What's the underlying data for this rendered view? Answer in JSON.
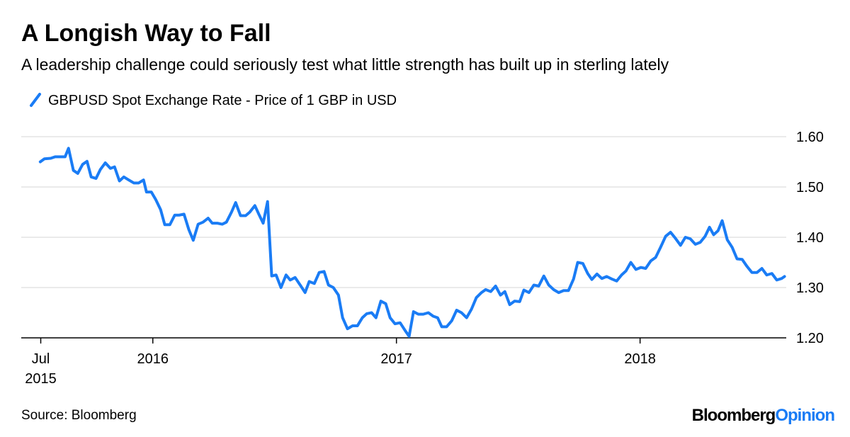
{
  "chart_data": {
    "type": "line",
    "title": "A Longish Way to Fall",
    "subtitle": "A leadership challenge could seriously test what little strength has built up in sterling lately",
    "source": "Source: Bloomberg",
    "brand": [
      "Bloomberg",
      "Opinion"
    ],
    "legend": "top-left",
    "grid": true,
    "xlim": [
      2015.46,
      2018.6
    ],
    "xticks": [
      {
        "value": 2015.54,
        "label": "Jul 2015"
      },
      2016,
      2017,
      2018
    ],
    "ylim": [
      1.2,
      1.6
    ],
    "yticks": [
      {
        "value": 1.2,
        "label": "1.20"
      },
      {
        "value": 1.3,
        "label": "1.30"
      },
      {
        "value": 1.4,
        "label": "1.40"
      },
      {
        "value": 1.5,
        "label": "1.50"
      },
      {
        "value": 1.6,
        "label": "1.60"
      }
    ],
    "x": [
      2015.538,
      2015.555,
      2015.581,
      2015.599,
      2015.64,
      2015.654,
      2015.674,
      2015.692,
      2015.712,
      2015.73,
      2015.747,
      2015.767,
      2015.785,
      2015.805,
      2015.826,
      2015.843,
      2015.863,
      2015.881,
      2015.901,
      2015.922,
      2015.942,
      2015.962,
      2015.974,
      2015.994,
      2016.012,
      2016.032,
      2016.049,
      2016.07,
      2016.09,
      2016.108,
      2016.128,
      2016.148,
      2016.166,
      2016.186,
      2016.206,
      2016.227,
      2016.244,
      2016.265,
      2016.285,
      2016.302,
      2016.323,
      2016.34,
      2016.36,
      2016.381,
      2016.398,
      2016.419,
      2016.436,
      2016.453,
      2016.471,
      2016.488,
      2016.506,
      2016.526,
      2016.547,
      2016.564,
      2016.584,
      2016.605,
      2016.625,
      2016.642,
      2016.663,
      2016.683,
      2016.703,
      2016.721,
      2016.741,
      2016.762,
      2016.779,
      2016.799,
      2016.82,
      2016.84,
      2016.86,
      2016.878,
      2016.898,
      2016.916,
      2016.936,
      2016.956,
      2016.974,
      2016.994,
      2017.015,
      2017.035,
      2017.052,
      2017.07,
      2017.09,
      2017.11,
      2017.131,
      2017.151,
      2017.169,
      2017.186,
      2017.206,
      2017.227,
      2017.247,
      2017.267,
      2017.288,
      2017.308,
      2017.328,
      2017.349,
      2017.366,
      2017.387,
      2017.407,
      2017.427,
      2017.445,
      2017.465,
      2017.485,
      2017.506,
      2017.523,
      2017.544,
      2017.564,
      2017.584,
      2017.605,
      2017.625,
      2017.645,
      2017.666,
      2017.686,
      2017.706,
      2017.727,
      2017.744,
      2017.765,
      2017.785,
      2017.802,
      2017.823,
      2017.843,
      2017.863,
      2017.884,
      2017.904,
      2017.924,
      2017.942,
      2017.962,
      2017.983,
      2018.003,
      2018.023,
      2018.044,
      2018.064,
      2018.084,
      2018.105,
      2018.125,
      2018.145,
      2018.166,
      2018.186,
      2018.206,
      2018.227,
      2018.247,
      2018.267,
      2018.285,
      2018.302,
      2018.32,
      2018.337,
      2018.358,
      2018.378,
      2018.398,
      2018.419,
      2018.439,
      2018.459,
      2018.48,
      2018.5,
      2018.52,
      2018.541,
      2018.561,
      2018.581,
      2018.593
    ],
    "series": [
      {
        "name": "GBPUSD Spot Exchange Rate - Price of 1 GBP in USD",
        "color": "#1a7cf5",
        "values": [
          1.55,
          1.556,
          1.557,
          1.56,
          1.56,
          1.577,
          1.533,
          1.527,
          1.545,
          1.551,
          1.52,
          1.517,
          1.535,
          1.548,
          1.537,
          1.54,
          1.512,
          1.52,
          1.514,
          1.508,
          1.508,
          1.514,
          1.49,
          1.49,
          1.475,
          1.455,
          1.425,
          1.425,
          1.444,
          1.444,
          1.446,
          1.415,
          1.394,
          1.426,
          1.43,
          1.438,
          1.428,
          1.428,
          1.426,
          1.43,
          1.45,
          1.469,
          1.443,
          1.443,
          1.45,
          1.463,
          1.445,
          1.428,
          1.471,
          1.323,
          1.325,
          1.3,
          1.325,
          1.315,
          1.32,
          1.305,
          1.29,
          1.312,
          1.308,
          1.33,
          1.332,
          1.305,
          1.3,
          1.285,
          1.24,
          1.218,
          1.224,
          1.224,
          1.24,
          1.248,
          1.25,
          1.24,
          1.273,
          1.268,
          1.24,
          1.228,
          1.23,
          1.215,
          1.203,
          1.252,
          1.247,
          1.247,
          1.25,
          1.243,
          1.24,
          1.222,
          1.222,
          1.234,
          1.255,
          1.25,
          1.24,
          1.257,
          1.28,
          1.29,
          1.296,
          1.292,
          1.303,
          1.285,
          1.292,
          1.266,
          1.273,
          1.272,
          1.295,
          1.29,
          1.305,
          1.303,
          1.323,
          1.305,
          1.296,
          1.29,
          1.294,
          1.294,
          1.317,
          1.35,
          1.348,
          1.328,
          1.316,
          1.327,
          1.318,
          1.322,
          1.317,
          1.313,
          1.325,
          1.333,
          1.35,
          1.336,
          1.34,
          1.338,
          1.353,
          1.36,
          1.38,
          1.402,
          1.41,
          1.398,
          1.384,
          1.4,
          1.397,
          1.386,
          1.39,
          1.402,
          1.42,
          1.405,
          1.413,
          1.433,
          1.395,
          1.38,
          1.357,
          1.356,
          1.342,
          1.33,
          1.33,
          1.338,
          1.325,
          1.328,
          1.315,
          1.318,
          1.322
        ]
      }
    ]
  }
}
